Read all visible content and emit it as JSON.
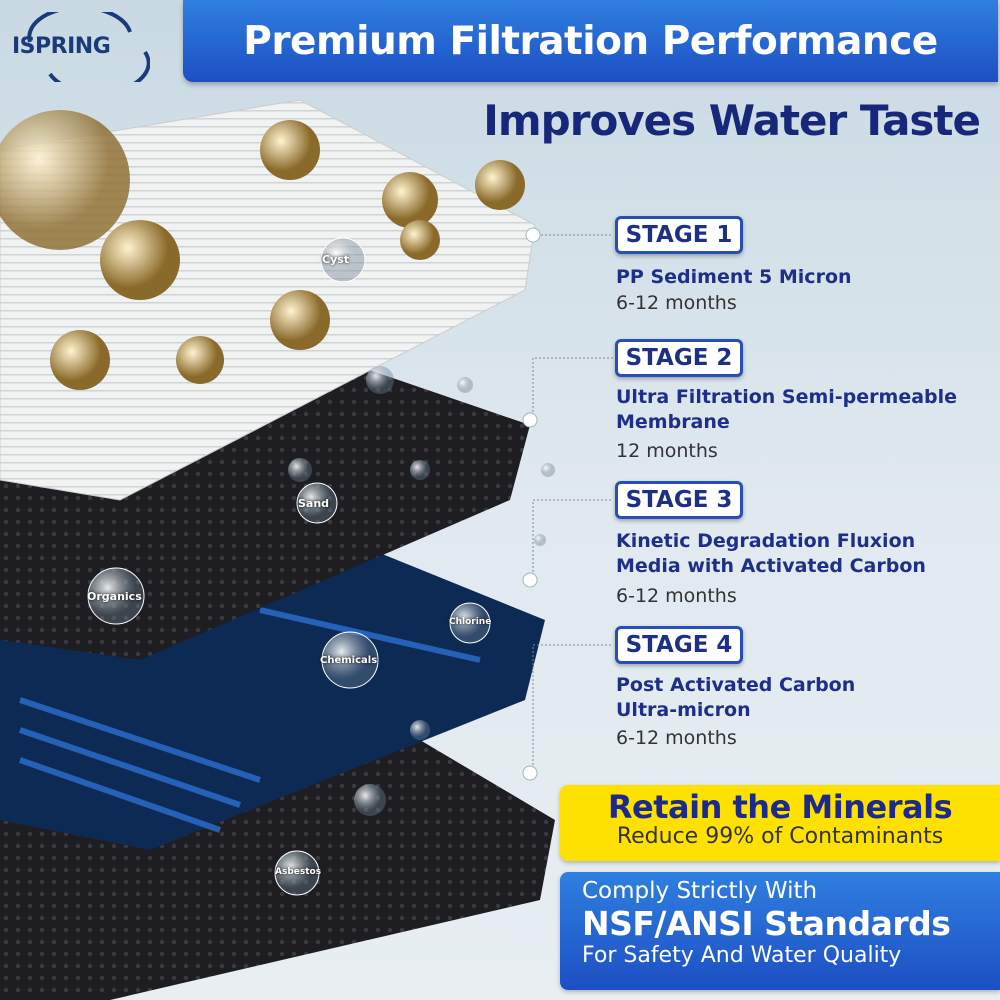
{
  "brand": {
    "logo_text": "ISPRING"
  },
  "header": {
    "title": "Premium Filtration Performance",
    "subtitle": "Improves Water Taste"
  },
  "contaminants": [
    "Cyst",
    "Sand",
    "Organics",
    "Chlorine",
    "Chemicals",
    "Asbestos"
  ],
  "stages": [
    {
      "label": "STAGE 1",
      "lines": [
        "PP Sediment 5 Micron"
      ],
      "duration": "6-12 months"
    },
    {
      "label": "STAGE 2",
      "lines": [
        "Ultra Filtration Semi-permeable",
        "Membrane"
      ],
      "duration": "12 months"
    },
    {
      "label": "STAGE 3",
      "lines": [
        "Kinetic Degradation Fluxion",
        "Media with Activated Carbon"
      ],
      "duration": "6-12 months"
    },
    {
      "label": "STAGE 4",
      "lines": [
        "Post Activated Carbon",
        "Ultra-micron"
      ],
      "duration": "6-12 months"
    }
  ],
  "minerals": {
    "headline": "Retain the Minerals",
    "subline": "Reduce 99% of Contaminants"
  },
  "standards": {
    "line1": "Comply Strictly With",
    "headline": "NSF/ANSI Standards",
    "line3": "For Safety And Water Quality"
  },
  "colors": {
    "title_blue": "#1d4fc4",
    "navy_text": "#1d2f88",
    "yellow": "#ffe100"
  }
}
